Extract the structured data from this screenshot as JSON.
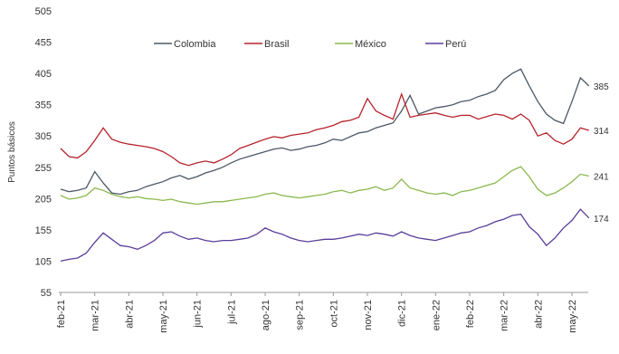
{
  "chart_data": {
    "type": "line",
    "y_label": "Puntos básicos",
    "categories": [
      "feb-21",
      null,
      null,
      null,
      "mar-21",
      null,
      null,
      null,
      "abr-21",
      null,
      null,
      null,
      "may-21",
      null,
      null,
      null,
      "jun-21",
      null,
      null,
      null,
      "jul-21",
      null,
      null,
      null,
      "ago-21",
      null,
      null,
      null,
      "sep-21",
      null,
      null,
      null,
      "oct-21",
      null,
      null,
      null,
      "nov-21",
      null,
      null,
      null,
      "dic-21",
      null,
      null,
      null,
      "ene-22",
      null,
      null,
      null,
      "feb-22",
      null,
      null,
      null,
      "mar-22",
      null,
      null,
      null,
      "abr-22",
      null,
      null,
      null,
      "may-22",
      null,
      null
    ],
    "series": [
      {
        "name": "Colombia",
        "color": "#4b5866",
        "values": [
          220,
          216,
          218,
          222,
          248,
          230,
          214,
          212,
          216,
          218,
          224,
          228,
          232,
          238,
          242,
          236,
          240,
          246,
          250,
          255,
          262,
          268,
          272,
          276,
          280,
          284,
          286,
          282,
          284,
          288,
          290,
          294,
          300,
          298,
          304,
          310,
          312,
          318,
          322,
          326,
          345,
          370,
          340,
          345,
          350,
          352,
          355,
          360,
          362,
          368,
          372,
          378,
          395,
          405,
          412,
          385,
          360,
          340,
          330,
          325,
          360,
          398,
          385
        ]
      },
      {
        "name": "Brasil",
        "color": "#b5232b",
        "values": [
          285,
          272,
          270,
          280,
          298,
          318,
          300,
          295,
          292,
          290,
          288,
          285,
          280,
          272,
          262,
          258,
          262,
          265,
          262,
          268,
          275,
          285,
          290,
          295,
          300,
          304,
          302,
          306,
          308,
          310,
          315,
          318,
          322,
          328,
          330,
          335,
          365,
          345,
          338,
          332,
          372,
          335,
          338,
          340,
          342,
          338,
          335,
          338,
          338,
          332,
          336,
          340,
          338,
          332,
          340,
          330,
          305,
          310,
          298,
          292,
          300,
          318,
          314
        ]
      },
      {
        "name": "México",
        "color": "#8bb84e",
        "values": [
          210,
          204,
          206,
          210,
          222,
          218,
          212,
          208,
          206,
          208,
          205,
          204,
          202,
          204,
          200,
          198,
          196,
          198,
          200,
          200,
          202,
          204,
          206,
          208,
          212,
          214,
          210,
          208,
          206,
          208,
          210,
          212,
          216,
          218,
          214,
          218,
          220,
          224,
          218,
          222,
          236,
          222,
          218,
          214,
          212,
          214,
          210,
          216,
          218,
          222,
          226,
          230,
          240,
          250,
          256,
          240,
          220,
          210,
          214,
          222,
          232,
          244,
          241
        ]
      },
      {
        "name": "Perú",
        "color": "#5b3d9a",
        "values": [
          105,
          108,
          110,
          118,
          135,
          150,
          140,
          130,
          128,
          124,
          130,
          138,
          150,
          152,
          145,
          140,
          142,
          138,
          136,
          138,
          138,
          140,
          142,
          148,
          158,
          152,
          148,
          142,
          138,
          136,
          138,
          140,
          140,
          142,
          145,
          148,
          146,
          150,
          148,
          145,
          152,
          146,
          142,
          140,
          138,
          142,
          146,
          150,
          152,
          158,
          162,
          168,
          172,
          178,
          180,
          160,
          148,
          130,
          142,
          158,
          170,
          188,
          174
        ]
      }
    ],
    "ylim": [
      55,
      505
    ],
    "yticks": [
      55,
      105,
      155,
      205,
      255,
      305,
      355,
      405,
      455,
      505
    ]
  }
}
